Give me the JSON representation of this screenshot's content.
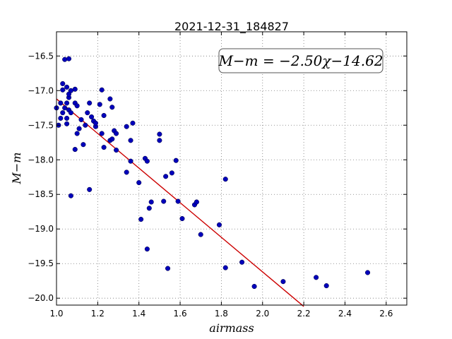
{
  "chart_data": {
    "type": "scatter",
    "title": "2021-12-31_184827",
    "xlabel": "airmass",
    "ylabel": "M−m",
    "xlim": [
      1.0,
      2.7
    ],
    "ylim": [
      -20.1,
      -16.15
    ],
    "xticks": [
      1.0,
      1.2,
      1.4,
      1.6,
      1.8,
      2.0,
      2.2,
      2.4,
      2.6
    ],
    "xtick_labels": [
      "1.0",
      "1.2",
      "1.4",
      "1.6",
      "1.8",
      "2.0",
      "2.2",
      "2.4",
      "2.6"
    ],
    "yticks": [
      -16.5,
      -17.0,
      -17.5,
      -18.0,
      -18.5,
      -19.0,
      -19.5,
      -20.0
    ],
    "ytick_labels": [
      "−16.5",
      "−17.0",
      "−17.5",
      "−18.0",
      "−18.5",
      "−19.0",
      "−19.5",
      "−20.0"
    ],
    "grid": true,
    "annotation": "M−m = −2.50χ−14.62",
    "fit": {
      "slope": -2.5,
      "intercept": -14.62,
      "x_range": [
        1.0,
        2.2
      ],
      "color": "#cc0000"
    },
    "point_color": "#0000bb",
    "points": [
      [
        1.0,
        -17.25
      ],
      [
        1.01,
        -17.5
      ],
      [
        1.02,
        -17.4
      ],
      [
        1.02,
        -17.18
      ],
      [
        1.03,
        -16.99
      ],
      [
        1.03,
        -17.32
      ],
      [
        1.03,
        -16.9
      ],
      [
        1.04,
        -17.25
      ],
      [
        1.04,
        -16.55
      ],
      [
        1.05,
        -17.4
      ],
      [
        1.05,
        -17.48
      ],
      [
        1.05,
        -16.95
      ],
      [
        1.05,
        -17.18
      ],
      [
        1.06,
        -17.28
      ],
      [
        1.06,
        -16.54
      ],
      [
        1.06,
        -17.1
      ],
      [
        1.07,
        -17.32
      ],
      [
        1.07,
        -17.0
      ],
      [
        1.06,
        -17.05
      ],
      [
        1.07,
        -18.52
      ],
      [
        1.09,
        -16.98
      ],
      [
        1.09,
        -17.18
      ],
      [
        1.09,
        -17.85
      ],
      [
        1.1,
        -17.62
      ],
      [
        1.1,
        -17.22
      ],
      [
        1.11,
        -17.55
      ],
      [
        1.12,
        -17.42
      ],
      [
        1.13,
        -17.78
      ],
      [
        1.14,
        -17.5
      ],
      [
        1.15,
        -17.32
      ],
      [
        1.16,
        -17.18
      ],
      [
        1.16,
        -18.43
      ],
      [
        1.17,
        -17.38
      ],
      [
        1.18,
        -17.44
      ],
      [
        1.19,
        -17.52
      ],
      [
        1.19,
        -17.47
      ],
      [
        1.21,
        -17.2
      ],
      [
        1.22,
        -16.99
      ],
      [
        1.22,
        -17.62
      ],
      [
        1.23,
        -17.36
      ],
      [
        1.23,
        -17.82
      ],
      [
        1.26,
        -17.12
      ],
      [
        1.26,
        -17.72
      ],
      [
        1.27,
        -17.7
      ],
      [
        1.27,
        -17.24
      ],
      [
        1.28,
        -17.58
      ],
      [
        1.29,
        -17.62
      ],
      [
        1.29,
        -17.86
      ],
      [
        1.34,
        -17.52
      ],
      [
        1.34,
        -18.18
      ],
      [
        1.36,
        -17.72
      ],
      [
        1.36,
        -18.02
      ],
      [
        1.37,
        -17.47
      ],
      [
        1.4,
        -18.33
      ],
      [
        1.41,
        -18.86
      ],
      [
        1.43,
        -17.98
      ],
      [
        1.44,
        -18.02
      ],
      [
        1.44,
        -19.29
      ],
      [
        1.45,
        -18.7
      ],
      [
        1.46,
        -18.61
      ],
      [
        1.5,
        -17.63
      ],
      [
        1.5,
        -17.72
      ],
      [
        1.52,
        -18.6
      ],
      [
        1.53,
        -18.24
      ],
      [
        1.54,
        -19.57
      ],
      [
        1.56,
        -18.19
      ],
      [
        1.58,
        -18.01
      ],
      [
        1.59,
        -18.6
      ],
      [
        1.61,
        -18.85
      ],
      [
        1.67,
        -18.65
      ],
      [
        1.68,
        -18.61
      ],
      [
        1.7,
        -19.08
      ],
      [
        1.79,
        -18.94
      ],
      [
        1.82,
        -18.28
      ],
      [
        1.82,
        -19.56
      ],
      [
        1.9,
        -19.48
      ],
      [
        1.96,
        -19.83
      ],
      [
        2.1,
        -19.76
      ],
      [
        2.26,
        -19.7
      ],
      [
        2.31,
        -19.82
      ],
      [
        2.51,
        -19.63
      ]
    ]
  }
}
